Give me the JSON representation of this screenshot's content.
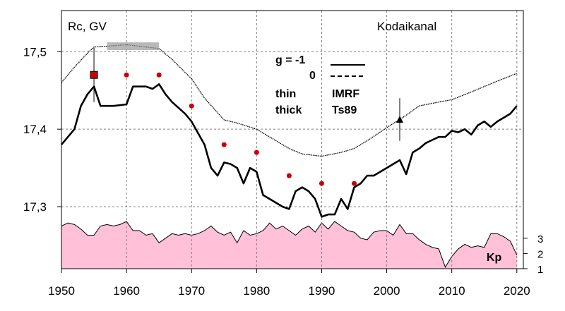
{
  "chart_data": {
    "type": "line",
    "title": "Kodaikanal",
    "ylabel": "Rc, GV",
    "xlabel": "",
    "xlim": [
      1950,
      2021
    ],
    "ylim": [
      17.22,
      17.553
    ],
    "grid": true,
    "x_ticks": [
      1950,
      1960,
      1970,
      1980,
      1990,
      2000,
      2010,
      2020
    ],
    "x_tick_labels": [
      "1950",
      "1960",
      "1970",
      "1980",
      "1990",
      "2000",
      "2010",
      "2020"
    ],
    "y_ticks": [
      17.3,
      17.4,
      17.5
    ],
    "y_tick_labels": [
      "17,3",
      "17,4",
      "17,5"
    ],
    "legend": {
      "line1_left": "g  = -1",
      "line2_left": "0",
      "line3_left": "thin",
      "line3_right": "IMRF",
      "line4_left": "thick",
      "line4_right": "Ts89"
    },
    "series": [
      {
        "style": "thin",
        "x": [
          1950,
          1952,
          1954,
          1955,
          1957,
          1960,
          1962,
          1965,
          1967,
          1970,
          1972,
          1975,
          1977,
          1980,
          1982,
          1985,
          1987,
          1990,
          1993,
          1995,
          1997,
          2000,
          2003,
          2005,
          2008,
          2010,
          2013,
          2015,
          2017,
          2020
        ],
        "y": [
          17.46,
          17.48,
          17.498,
          17.506,
          17.507,
          17.509,
          17.507,
          17.504,
          17.49,
          17.465,
          17.44,
          17.412,
          17.408,
          17.4,
          17.39,
          17.375,
          17.368,
          17.365,
          17.37,
          17.375,
          17.385,
          17.402,
          17.418,
          17.43,
          17.435,
          17.438,
          17.448,
          17.455,
          17.462,
          17.472
        ]
      },
      {
        "style": "thick",
        "x": [
          1950,
          1952,
          1953,
          1954,
          1955,
          1956,
          1958,
          1960,
          1961,
          1963,
          1964,
          1965,
          1966,
          1967,
          1969,
          1970,
          1971,
          1972,
          1973,
          1974,
          1975,
          1976,
          1977,
          1978,
          1979,
          1980,
          1981,
          1982,
          1983,
          1984,
          1985,
          1986,
          1987,
          1988,
          1989,
          1990,
          1991,
          1992,
          1993,
          1994,
          1995,
          1996,
          1997,
          1998,
          2000,
          2002,
          2003,
          2004,
          2005,
          2006,
          2007,
          2008,
          2009,
          2010,
          2011,
          2012,
          2013,
          2014,
          2015,
          2016,
          2017,
          2018,
          2019,
          2020
        ],
        "y": [
          17.38,
          17.4,
          17.43,
          17.445,
          17.455,
          17.43,
          17.43,
          17.432,
          17.455,
          17.455,
          17.452,
          17.458,
          17.445,
          17.435,
          17.42,
          17.41,
          17.395,
          17.38,
          17.35,
          17.34,
          17.357,
          17.355,
          17.35,
          17.33,
          17.35,
          17.345,
          17.315,
          17.31,
          17.305,
          17.3,
          17.297,
          17.32,
          17.325,
          17.32,
          17.31,
          17.287,
          17.29,
          17.29,
          17.31,
          17.297,
          17.325,
          17.33,
          17.34,
          17.34,
          17.35,
          17.36,
          17.342,
          17.37,
          17.375,
          17.382,
          17.386,
          17.39,
          17.39,
          17.398,
          17.396,
          17.4,
          17.393,
          17.405,
          17.41,
          17.403,
          17.41,
          17.415,
          17.42,
          17.43
        ]
      }
    ],
    "points": {
      "x": [
        1960,
        1965,
        1970,
        1975,
        1980,
        1985,
        1990,
        1995
      ],
      "y": [
        17.47,
        17.47,
        17.43,
        17.38,
        17.37,
        17.34,
        17.33,
        17.33
      ],
      "color": "#cc0000"
    },
    "square_marker": {
      "x": 1955,
      "y": 17.47,
      "y_err": [
        17.435,
        17.505
      ],
      "color": "#cc0000"
    },
    "triangle_marker": {
      "x": 2002,
      "y": 17.412,
      "y_err": [
        17.385,
        17.44
      ]
    },
    "kp_panel": {
      "label": "Kp",
      "ticks": [
        1,
        2,
        3
      ],
      "tick_labels": [
        "1",
        "2",
        "3"
      ],
      "range": [
        1,
        4.75
      ],
      "fill_color": "#ffc0d8",
      "x": [
        1950,
        1951,
        1952,
        1953,
        1954,
        1955,
        1956,
        1957,
        1958,
        1959,
        1960,
        1961,
        1962,
        1963,
        1964,
        1965,
        1966,
        1967,
        1968,
        1969,
        1970,
        1971,
        1972,
        1973,
        1974,
        1975,
        1976,
        1977,
        1978,
        1979,
        1980,
        1981,
        1982,
        1983,
        1984,
        1985,
        1986,
        1987,
        1988,
        1989,
        1990,
        1991,
        1992,
        1993,
        1994,
        1995,
        1996,
        1997,
        1998,
        1999,
        2000,
        2001,
        2002,
        2003,
        2004,
        2005,
        2006,
        2007,
        2008,
        2009,
        2010,
        2011,
        2012,
        2013,
        2014,
        2015,
        2016,
        2017,
        2018,
        2019,
        2020
      ],
      "values": [
        3.8,
        4.0,
        3.9,
        3.6,
        3.2,
        3.2,
        3.8,
        3.9,
        3.8,
        3.9,
        4.1,
        3.5,
        3.5,
        3.2,
        3.3,
        2.7,
        3.0,
        3.3,
        3.2,
        3.3,
        3.2,
        3.3,
        3.5,
        3.8,
        3.4,
        3.2,
        3.4,
        2.7,
        3.5,
        3.2,
        3.3,
        3.5,
        4.0,
        3.6,
        3.8,
        3.5,
        3.2,
        3.6,
        3.8,
        3.4,
        4.0,
        3.6,
        4.1,
        3.8,
        3.5,
        3.4,
        3.0,
        2.9,
        3.4,
        3.5,
        3.5,
        3.2,
        3.9,
        3.3,
        3.3,
        2.9,
        2.6,
        2.4,
        2.3,
        1.1,
        1.8,
        2.3,
        2.6,
        2.4,
        2.5,
        2.4,
        3.3,
        3.3,
        3.1,
        2.8,
        1.9
      ]
    }
  }
}
